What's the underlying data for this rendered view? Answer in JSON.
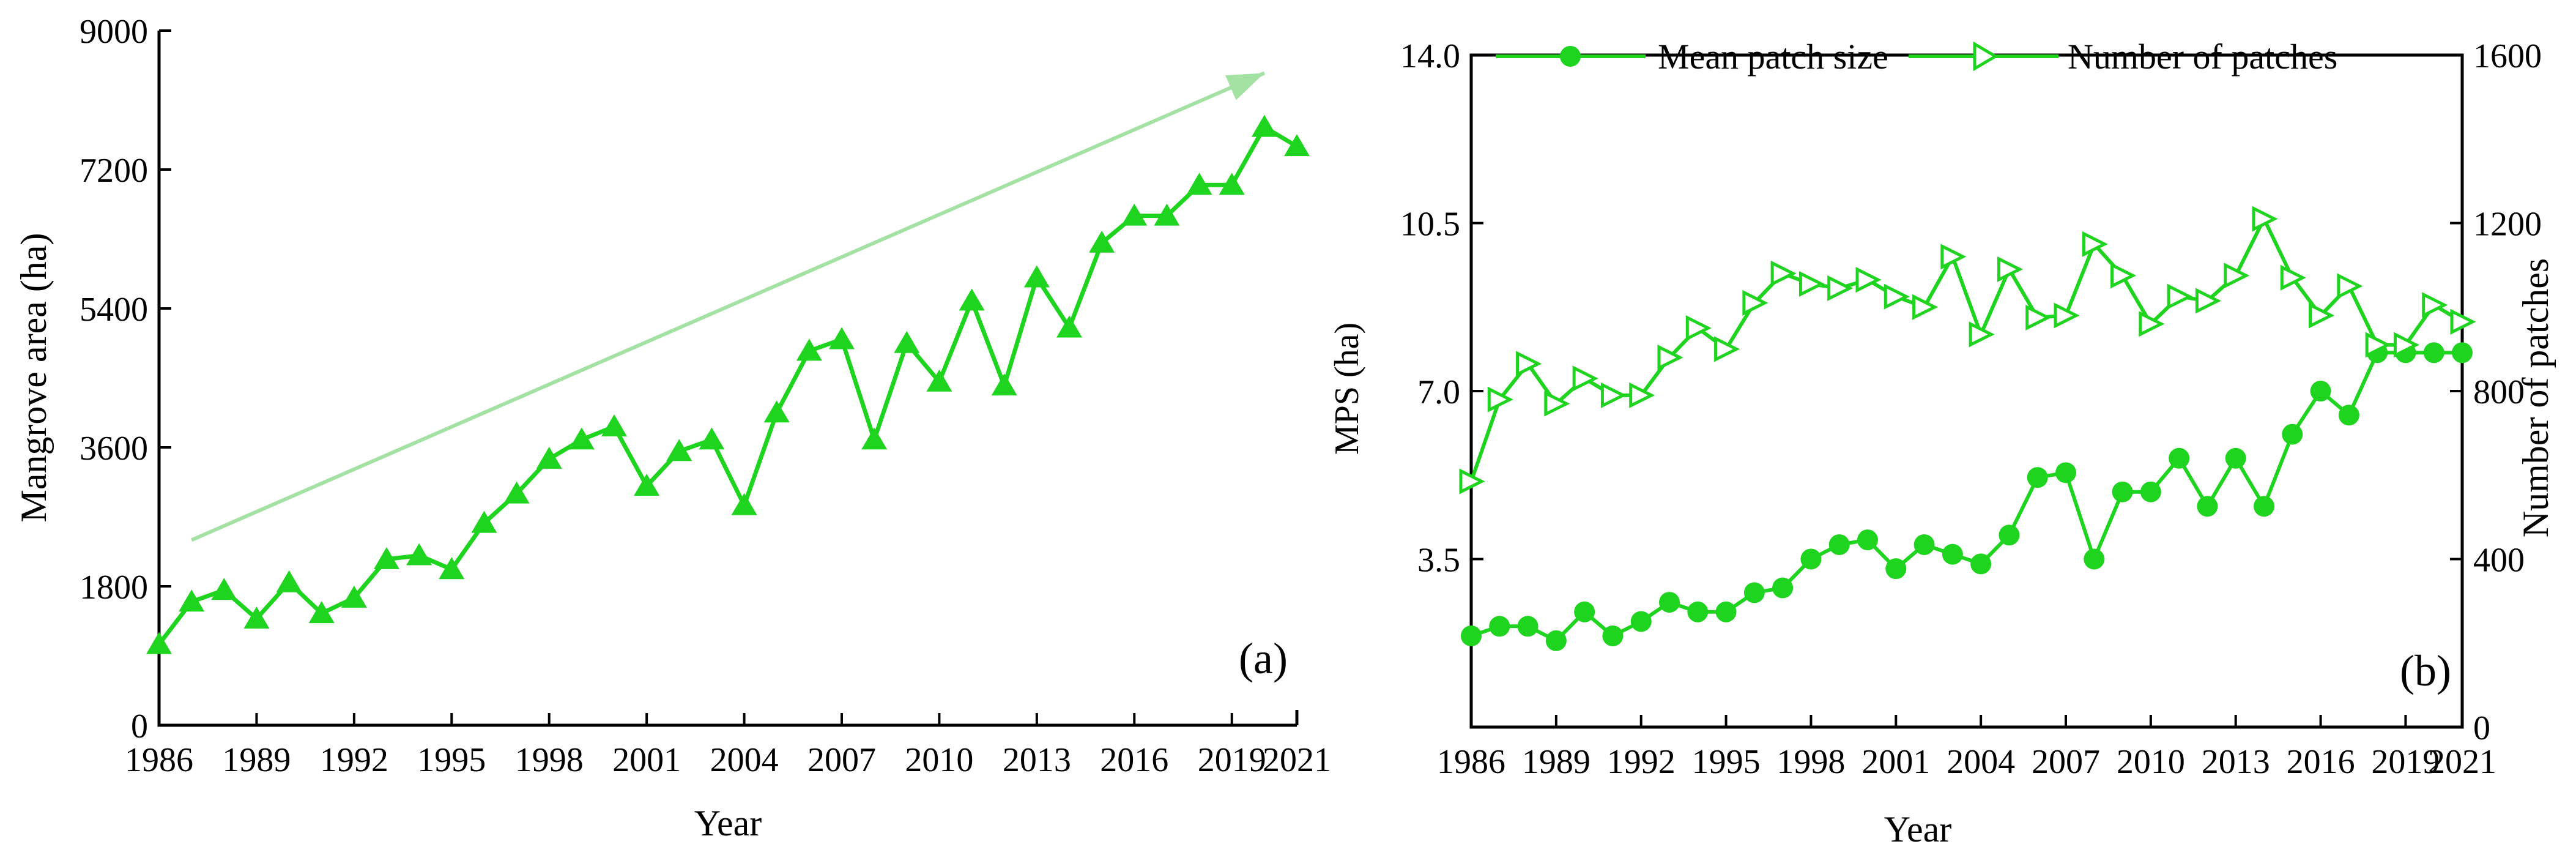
{
  "chart_data": [
    {
      "panel_label": "(a)",
      "type": "line",
      "title": "",
      "xlabel": "Year",
      "ylabel": "Mangrove area (ha)",
      "x_ticks": [
        "1986",
        "1989",
        "1992",
        "1995",
        "1998",
        "2001",
        "2004",
        "2007",
        "2010",
        "2013",
        "2016",
        "2019",
        "2021"
      ],
      "y_ticks": [
        "0",
        "1800",
        "3600",
        "5400",
        "7200",
        "9000"
      ],
      "xlim": [
        1986,
        2021
      ],
      "ylim": [
        0,
        9000
      ],
      "trend_arrow": {
        "from": [
          1987,
          2400
        ],
        "to": [
          2020,
          8450
        ]
      },
      "series": [
        {
          "name": "Mangrove area",
          "marker": "triangle",
          "color": "#1fd41f",
          "x": [
            1986,
            1987,
            1988,
            1989,
            1990,
            1991,
            1992,
            1993,
            1994,
            1995,
            1996,
            1997,
            1998,
            1999,
            2000,
            2001,
            2002,
            2003,
            2004,
            2005,
            2006,
            2007,
            2008,
            2009,
            2010,
            2011,
            2012,
            2013,
            2014,
            2015,
            2016,
            2017,
            2018,
            2019,
            2020,
            2021
          ],
          "values": [
            1050,
            1600,
            1750,
            1380,
            1850,
            1450,
            1650,
            2150,
            2200,
            2020,
            2620,
            3000,
            3450,
            3700,
            3870,
            3100,
            3550,
            3700,
            2850,
            4050,
            4850,
            5000,
            3700,
            4950,
            4450,
            5500,
            4400,
            5800,
            5150,
            6250,
            6600,
            6600,
            7000,
            7000,
            7750,
            7500
          ]
        }
      ]
    },
    {
      "panel_label": "(b)",
      "type": "line",
      "title": "",
      "xlabel": "Year",
      "ylabel_left": "MPS (ha)",
      "ylabel_right": "Number of patches",
      "x_ticks": [
        "1986",
        "1989",
        "1992",
        "1995",
        "1998",
        "2001",
        "2004",
        "2007",
        "2010",
        "2013",
        "2016",
        "2019",
        "2021"
      ],
      "y_ticks_left": [
        "3.5",
        "7.0",
        "10.5",
        "14.0"
      ],
      "y_ticks_right": [
        "0",
        "400",
        "800",
        "1200",
        "1600"
      ],
      "xlim": [
        1986,
        2021
      ],
      "ylim_left": [
        0,
        14.0
      ],
      "ylim_right": [
        0,
        1600
      ],
      "legend_position": "top",
      "series": [
        {
          "name": "Mean patch size",
          "axis": "left",
          "marker": "circle",
          "color": "#1fd41f",
          "x": [
            1986,
            1987,
            1988,
            1989,
            1990,
            1991,
            1992,
            1993,
            1994,
            1995,
            1996,
            1997,
            1998,
            1999,
            2000,
            2001,
            2002,
            2003,
            2004,
            2005,
            2006,
            2007,
            2008,
            2009,
            2010,
            2011,
            2012,
            2013,
            2014,
            2015,
            2016,
            2017,
            2018,
            2019,
            2020,
            2021
          ],
          "values": [
            1.9,
            2.1,
            2.1,
            1.8,
            2.4,
            1.9,
            2.2,
            2.6,
            2.4,
            2.4,
            2.8,
            2.9,
            3.5,
            3.8,
            3.9,
            3.3,
            3.8,
            3.6,
            3.4,
            4.0,
            5.2,
            5.3,
            3.5,
            4.9,
            4.9,
            5.6,
            4.6,
            5.6,
            4.6,
            6.1,
            7.0,
            6.5,
            7.8,
            7.8,
            7.8,
            7.8
          ]
        },
        {
          "name": "Number of patches",
          "axis": "right",
          "marker": "right-triangle",
          "color": "#1fd41f",
          "x": [
            1986,
            1987,
            1988,
            1989,
            1990,
            1991,
            1992,
            1993,
            1994,
            1995,
            1996,
            1997,
            1998,
            1999,
            2000,
            2001,
            2002,
            2003,
            2004,
            2005,
            2006,
            2007,
            2008,
            2009,
            2010,
            2011,
            2012,
            2013,
            2014,
            2015,
            2016,
            2017,
            2018,
            2019,
            2020,
            2021
          ],
          "values": [
            585,
            780,
            865,
            770,
            830,
            790,
            790,
            880,
            950,
            900,
            1010,
            1080,
            1055,
            1045,
            1065,
            1025,
            1000,
            1120,
            935,
            1090,
            975,
            980,
            1150,
            1075,
            960,
            1025,
            1015,
            1075,
            1210,
            1070,
            980,
            1050,
            910,
            910,
            1005,
            965
          ]
        }
      ]
    }
  ]
}
